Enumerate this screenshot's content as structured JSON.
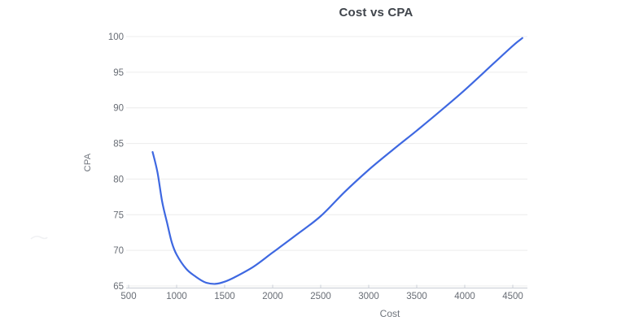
{
  "chart_title": "Cost vs CPA",
  "chart_data": {
    "type": "line",
    "title": "Cost vs CPA",
    "xlabel": "Cost",
    "ylabel": "CPA",
    "x_ticks": [
      500,
      1000,
      1500,
      2000,
      2500,
      3000,
      3500,
      4000,
      4500
    ],
    "y_ticks": [
      65,
      70,
      75,
      80,
      85,
      90,
      95,
      100
    ],
    "xlim": [
      500,
      4650
    ],
    "ylim": [
      65,
      100
    ],
    "grid": "horizontal-only",
    "legend": "none",
    "series": [
      {
        "name": "CPA",
        "color": "#3e68e1",
        "points": [
          [
            750,
            83.8
          ],
          [
            800,
            81.0
          ],
          [
            850,
            76.8
          ],
          [
            900,
            73.9
          ],
          [
            950,
            71.1
          ],
          [
            1000,
            69.4
          ],
          [
            1100,
            67.4
          ],
          [
            1200,
            66.3
          ],
          [
            1300,
            65.5
          ],
          [
            1400,
            65.3
          ],
          [
            1500,
            65.6
          ],
          [
            1600,
            66.2
          ],
          [
            1800,
            67.7
          ],
          [
            2000,
            69.7
          ],
          [
            2250,
            72.2
          ],
          [
            2500,
            74.8
          ],
          [
            2750,
            78.2
          ],
          [
            3000,
            81.3
          ],
          [
            3250,
            84.1
          ],
          [
            3500,
            86.8
          ],
          [
            3750,
            89.6
          ],
          [
            4000,
            92.5
          ],
          [
            4250,
            95.6
          ],
          [
            4500,
            98.7
          ],
          [
            4600,
            99.8
          ]
        ]
      }
    ],
    "annotations": {
      "min_point": {
        "cost": 1350,
        "cpa": 65.3
      },
      "start_point": {
        "cost": 750,
        "cpa": 84
      },
      "end_point": {
        "cost": 4600,
        "cpa": 100
      }
    }
  },
  "colors": {
    "line": "#3e68e1",
    "gridline": "#ececec",
    "axis_line": "#c7ccd4",
    "tick_mark": "#ccd1d8",
    "tick_text": "#686d75",
    "title_text": "#3f444b",
    "axis_title_text": "#6f747c",
    "background": "#ffffff"
  }
}
